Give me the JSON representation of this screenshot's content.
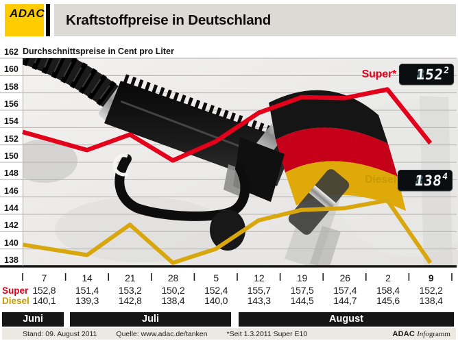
{
  "header": {
    "logo_text": "ADAC",
    "title": "Kraftstoffpreise in Deutschland"
  },
  "subtitle": "Durchschnittspreise in Cent pro Liter",
  "legend": {
    "super": {
      "label": "Super*",
      "ghost": "8",
      "digits": "152",
      "sup": "2"
    },
    "diesel": {
      "label": "Diesel",
      "ghost": "8",
      "digits": "138",
      "sup": "4"
    }
  },
  "chart_data": {
    "type": "line",
    "title": "Kraftstoffpreise in Deutschland",
    "ylabel": "Durchschnittspreise in Cent pro Liter",
    "ylim": [
      138,
      162
    ],
    "yticks": [
      162,
      160,
      158,
      156,
      154,
      152,
      150,
      148,
      146,
      144,
      142,
      140,
      138
    ],
    "grid": true,
    "categories": [
      "7",
      "14",
      "21",
      "28",
      "5",
      "12",
      "19",
      "26",
      "2",
      "9"
    ],
    "month_groups": [
      "Juni",
      "Juli",
      "August"
    ],
    "highlighted_category": "9",
    "series": [
      {
        "name": "Super",
        "color": "#e2001a",
        "values": [
          152.8,
          151.4,
          153.2,
          150.2,
          152.4,
          155.7,
          157.5,
          157.4,
          158.4,
          152.2
        ]
      },
      {
        "name": "Diesel",
        "color": "#d8a70e",
        "values": [
          140.1,
          139.3,
          142.8,
          138.4,
          140.0,
          143.3,
          144.5,
          144.7,
          145.6,
          138.4
        ]
      }
    ],
    "legend_position": "inline-right"
  },
  "table": {
    "super_label": "Super",
    "diesel_label": "Diesel",
    "super_values": [
      "152,8",
      "151,4",
      "153,2",
      "150,2",
      "152,4",
      "155,7",
      "157,5",
      "157,4",
      "158,4",
      "152,2"
    ],
    "diesel_values": [
      "140,1",
      "139,3",
      "142,8",
      "138,4",
      "140,0",
      "143,3",
      "144,5",
      "144,7",
      "145,6",
      "138,4"
    ]
  },
  "months": [
    "Juni",
    "Juli",
    "August"
  ],
  "footer": {
    "stand": "Stand: 09. August 2011",
    "quelle": "Quelle: www.adac.de/tanken",
    "note": "*Seit 1.3.2011 Super E10",
    "credit": {
      "bold": "ADAC",
      "italic": "Info",
      "rest": "gramm"
    }
  },
  "colors": {
    "adac_yellow": "#ffcc00",
    "super_red": "#e2001a",
    "diesel_gold": "#d8a70e",
    "band_gray": "#dcdad5",
    "display_bg": "#0a0e11"
  }
}
